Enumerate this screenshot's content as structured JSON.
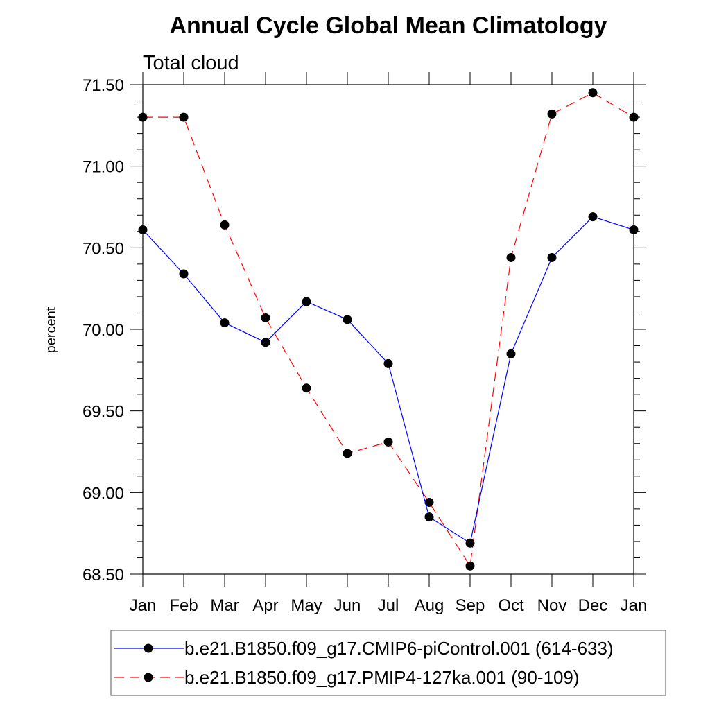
{
  "chart_data": {
    "type": "line",
    "title": "Annual Cycle Global Mean Climatology",
    "subtitle": "Total cloud",
    "xlabel": "",
    "ylabel": "percent",
    "ylim": [
      68.5,
      71.5
    ],
    "y_tick_labels": [
      "68.50",
      "69.00",
      "69.50",
      "70.00",
      "70.50",
      "71.00",
      "71.50"
    ],
    "categories": [
      "Jan",
      "Feb",
      "Mar",
      "Apr",
      "May",
      "Jun",
      "Jul",
      "Aug",
      "Sep",
      "Oct",
      "Nov",
      "Dec",
      "Jan"
    ],
    "series": [
      {
        "name": "b.e21.B1850.f09_g17.CMIP6-piControl.001 (614-633)",
        "color": "#0000ff",
        "line_style": "solid",
        "marker": "filled-circle",
        "values": [
          70.61,
          70.34,
          70.04,
          69.92,
          70.17,
          70.06,
          69.79,
          68.85,
          68.69,
          69.85,
          70.44,
          70.69,
          70.61
        ]
      },
      {
        "name": "b.e21.B1850.f09_g17.PMIP4-127ka.001 (90-109)",
        "color": "#ff0000",
        "line_style": "dashed",
        "marker": "filled-circle",
        "values": [
          71.3,
          71.3,
          70.64,
          70.07,
          69.64,
          69.24,
          69.31,
          68.94,
          68.55,
          70.44,
          71.32,
          71.45,
          71.3
        ]
      }
    ],
    "grid": false,
    "legend_position": "bottom"
  }
}
